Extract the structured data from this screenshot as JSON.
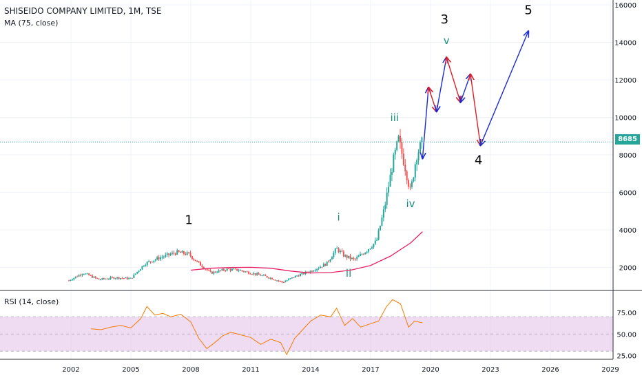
{
  "header": {
    "title": "SHISEIDO COMPANY LIMITED, 1M, TSE",
    "ma_label": "MA (75, close)",
    "rsi_label": "RSI (14, close)"
  },
  "colors": {
    "up": "#26a69a",
    "down": "#ef5350",
    "ma": "#e91e63",
    "rsi": "#f57c00",
    "rsi_band": "#e1bee7",
    "arrow_up": "#1a2bd1",
    "arrow_down": "#e01b24",
    "wave_dark": "#000000",
    "wave_teal": "#1b8f7d"
  },
  "chart_data": [
    {
      "type": "candlestick",
      "title": "SHISEIDO COMPANY LIMITED, 1M, TSE",
      "ylim": [
        1000,
        16000
      ],
      "yticks": [
        "16000",
        "14000",
        "12000",
        "10000",
        "8000",
        "6000",
        "4000",
        "2000"
      ],
      "xticks": [
        "2002",
        "2005",
        "2008",
        "2011",
        "2014",
        "2017",
        "2020",
        "2023",
        "2026",
        "2029"
      ],
      "last_price": "8685",
      "close_path": [
        [
          2001.9,
          1300
        ],
        [
          2002.6,
          1700
        ],
        [
          2003.4,
          1350
        ],
        [
          2004.2,
          1450
        ],
        [
          2005.0,
          1400
        ],
        [
          2005.7,
          2200
        ],
        [
          2006.4,
          2500
        ],
        [
          2007.3,
          2800
        ],
        [
          2007.9,
          2700
        ],
        [
          2008.3,
          2300
        ],
        [
          2009.0,
          1700
        ],
        [
          2009.8,
          1900
        ],
        [
          2010.4,
          1850
        ],
        [
          2011.0,
          1700
        ],
        [
          2011.8,
          1500
        ],
        [
          2012.6,
          1200
        ],
        [
          2013.3,
          1550
        ],
        [
          2014.0,
          1800
        ],
        [
          2014.8,
          2200
        ],
        [
          2015.3,
          3000
        ],
        [
          2015.7,
          2600
        ],
        [
          2016.2,
          2400
        ],
        [
          2016.8,
          2900
        ],
        [
          2017.3,
          3400
        ],
        [
          2017.7,
          5200
        ],
        [
          2018.1,
          7500
        ],
        [
          2018.4,
          8800
        ],
        [
          2018.7,
          7500
        ],
        [
          2019.0,
          6000
        ],
        [
          2019.3,
          8000
        ],
        [
          2019.6,
          8685
        ]
      ],
      "ma_path": [
        [
          2008.0,
          1850
        ],
        [
          2009.0,
          1950
        ],
        [
          2010.0,
          1990
        ],
        [
          2011.0,
          2000
        ],
        [
          2012.0,
          1950
        ],
        [
          2013.0,
          1800
        ],
        [
          2014.0,
          1700
        ],
        [
          2015.0,
          1720
        ],
        [
          2016.0,
          1850
        ],
        [
          2017.0,
          2100
        ],
        [
          2018.0,
          2600
        ],
        [
          2019.0,
          3300
        ],
        [
          2019.6,
          3900
        ]
      ],
      "projection": [
        {
          "from": [
            2019.6,
            7800
          ],
          "to": [
            2019.9,
            11600
          ],
          "dir": "up"
        },
        {
          "from": [
            2019.9,
            11600
          ],
          "to": [
            2020.3,
            10300
          ],
          "dir": "down"
        },
        {
          "from": [
            2020.3,
            10300
          ],
          "to": [
            2020.8,
            13200
          ],
          "dir": "up"
        },
        {
          "from": [
            2020.8,
            13200
          ],
          "to": [
            2021.5,
            10800
          ],
          "dir": "down"
        },
        {
          "from": [
            2021.5,
            10800
          ],
          "to": [
            2022.0,
            12300
          ],
          "dir": "up"
        },
        {
          "from": [
            2022.0,
            12300
          ],
          "to": [
            2022.5,
            8500
          ],
          "dir": "down"
        },
        {
          "from": [
            2022.5,
            8500
          ],
          "to": [
            2024.9,
            14600
          ],
          "dir": "up"
        }
      ],
      "wave_labels": [
        {
          "text": "1",
          "x": 2007.9,
          "y": 4300,
          "tone": "dark"
        },
        {
          "text": "i",
          "x": 2015.4,
          "y": 4500,
          "tone": "teal"
        },
        {
          "text": "ii",
          "x": 2015.9,
          "y": 1500,
          "tone": "teal"
        },
        {
          "text": "iii",
          "x": 2018.2,
          "y": 9800,
          "tone": "teal"
        },
        {
          "text": "iv",
          "x": 2019.0,
          "y": 5200,
          "tone": "teal"
        },
        {
          "text": "3",
          "x": 2020.7,
          "y": 15000,
          "tone": "dark"
        },
        {
          "text": "v",
          "x": 2020.8,
          "y": 13900,
          "tone": "teal"
        },
        {
          "text": "4",
          "x": 2022.4,
          "y": 7500,
          "tone": "dark"
        },
        {
          "text": "5",
          "x": 2024.9,
          "y": 15500,
          "tone": "dark"
        }
      ]
    },
    {
      "type": "line",
      "title": "RSI (14, close)",
      "ylim": [
        20,
        95
      ],
      "yticks": [
        "75.00",
        "50.00",
        "25.00"
      ],
      "band": [
        30,
        70
      ],
      "series": [
        {
          "x": [
            2003.0,
            2003.5,
            2004.0,
            2004.5,
            2005.0,
            2005.5,
            2005.8,
            2006.2,
            2006.6,
            2007.0,
            2007.5,
            2008.0,
            2008.4,
            2008.8,
            2009.2,
            2009.6,
            2010.0,
            2010.5,
            2011.0,
            2011.5,
            2012.0,
            2012.5,
            2012.8,
            2013.2,
            2013.6,
            2014.0,
            2014.5,
            2015.0,
            2015.3,
            2015.7,
            2016.1,
            2016.5,
            2017.0,
            2017.4,
            2017.8,
            2018.1,
            2018.5,
            2018.9,
            2019.2,
            2019.6
          ],
          "values": [
            56,
            55,
            58,
            60,
            57,
            68,
            82,
            72,
            74,
            70,
            73,
            64,
            45,
            33,
            40,
            48,
            52,
            49,
            46,
            38,
            44,
            40,
            26,
            45,
            55,
            65,
            72,
            70,
            80,
            60,
            68,
            58,
            62,
            65,
            82,
            90,
            85,
            58,
            65,
            63
          ]
        }
      ]
    }
  ]
}
